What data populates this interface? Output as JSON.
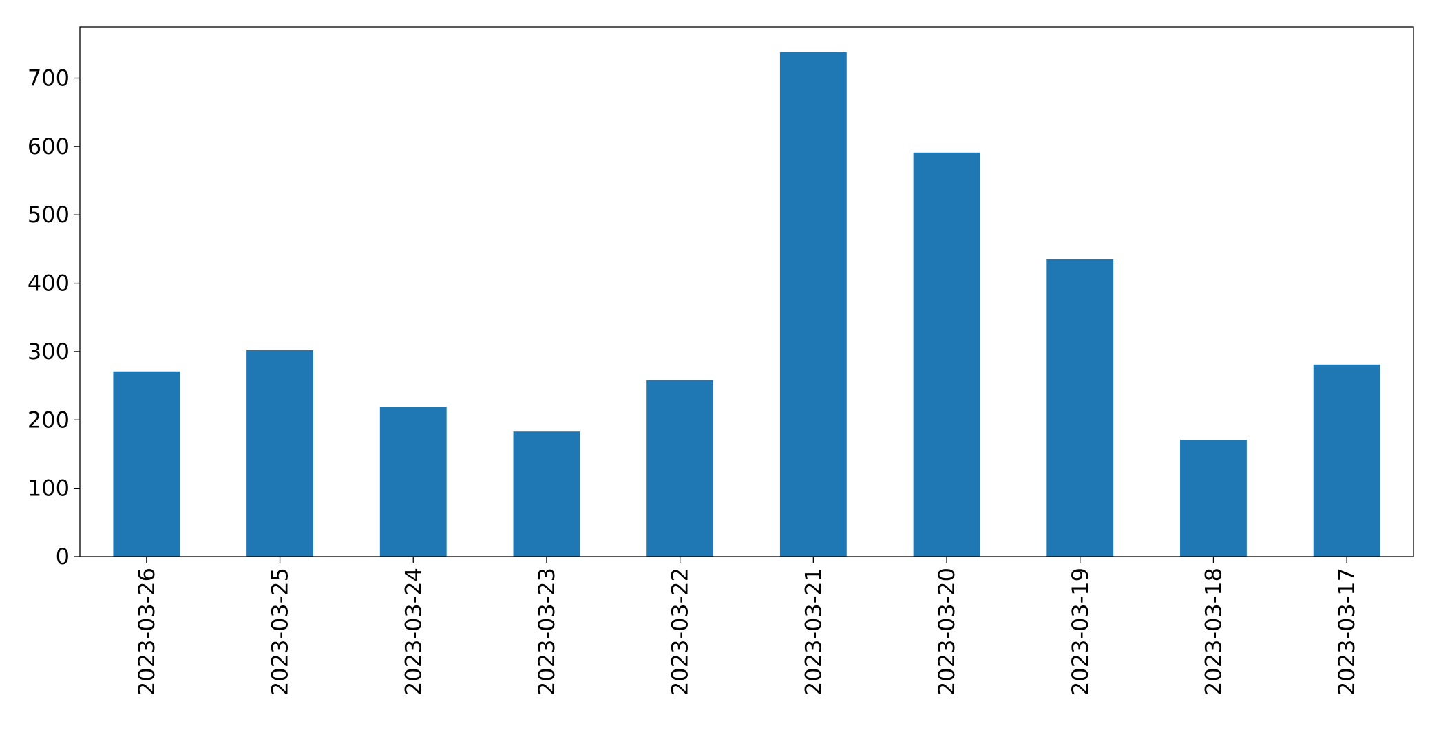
{
  "chart_data": {
    "type": "bar",
    "categories": [
      "2023-03-26",
      "2023-03-25",
      "2023-03-24",
      "2023-03-23",
      "2023-03-22",
      "2023-03-21",
      "2023-03-20",
      "2023-03-19",
      "2023-03-18",
      "2023-03-17"
    ],
    "values": [
      271,
      302,
      219,
      183,
      258,
      738,
      591,
      435,
      171,
      281
    ],
    "color": "#1f77b4",
    "ylim": [
      0,
      775
    ],
    "yticks": [
      0,
      100,
      200,
      300,
      400,
      500,
      600,
      700
    ],
    "grid": false
  }
}
